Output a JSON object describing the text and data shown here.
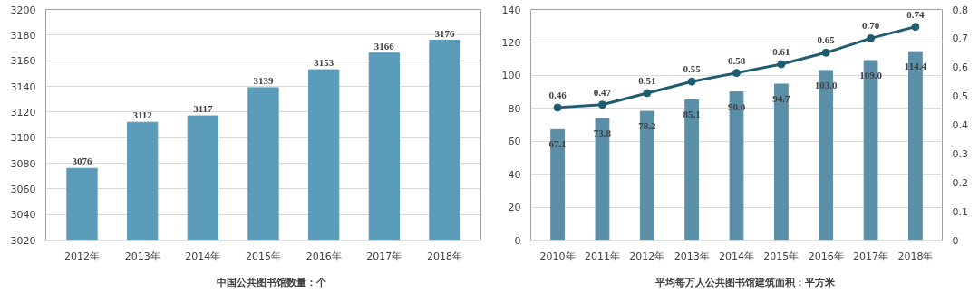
{
  "chart_data": [
    {
      "type": "bar",
      "categories": [
        "2012年",
        "2013年",
        "2014年",
        "2015年",
        "2016年",
        "2017年",
        "2018年"
      ],
      "series": [
        {
          "name": "中国公共图书馆数量：个",
          "color": "#5b9cba",
          "values": [
            3076,
            3112,
            3117,
            3139,
            3153,
            3166,
            3176
          ]
        }
      ],
      "ylim": [
        3020,
        3200
      ],
      "yticks": [
        3020,
        3040,
        3060,
        3080,
        3100,
        3120,
        3140,
        3160,
        3180,
        3200
      ],
      "grid": "y",
      "legend": "bottom",
      "data_labels": true
    },
    {
      "type": "bar",
      "categories": [
        "2010年",
        "2011年",
        "2012年",
        "2013年",
        "2014年",
        "2015年",
        "2016年",
        "2017年",
        "2018年"
      ],
      "series": [
        {
          "name": "平均每万人公共图书馆建筑面积：平方米",
          "color": "#5b8fa8",
          "values": [
            67.1,
            73.8,
            78.2,
            85.1,
            90.0,
            94.7,
            103.0,
            109.0,
            114.4
          ],
          "value_labels": [
            "67.1",
            "73.8",
            "78.2",
            "85.1",
            "90.0",
            "94.7",
            "103.0",
            "109.0",
            "114.4"
          ]
        },
        {
          "type": "line",
          "axis": "y2",
          "color": "#1f5c70",
          "marker": "circle",
          "values": [
            0.46,
            0.47,
            0.51,
            0.55,
            0.58,
            0.61,
            0.65,
            0.7,
            0.74
          ],
          "value_labels": [
            "0.46",
            "0.47",
            "0.51",
            "0.55",
            "0.58",
            "0.61",
            "0.65",
            "0.70",
            "0.74"
          ]
        }
      ],
      "ylim": [
        0,
        140
      ],
      "yticks": [
        0,
        20,
        40,
        60,
        80,
        100,
        120,
        140
      ],
      "y2lim": [
        0,
        0.8
      ],
      "y2ticks": [
        0,
        0.1,
        0.2,
        0.3,
        0.4,
        0.5,
        0.6,
        0.7,
        0.8
      ],
      "grid": "y",
      "legend": "bottom",
      "data_labels": true
    }
  ]
}
